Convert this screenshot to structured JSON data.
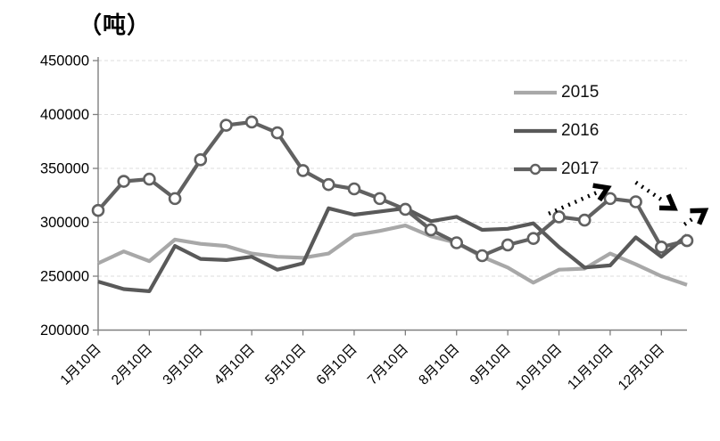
{
  "title": "（吨）",
  "chart_data": {
    "type": "line",
    "title": "（吨）",
    "unit": "吨",
    "x_tick_labels": [
      "1月10日",
      "2月10日",
      "3月10日",
      "4月10日",
      "5月10日",
      "6月10日",
      "7月10日",
      "8月10日",
      "9月10日",
      "10月10日",
      "11月10日",
      "12月10日"
    ],
    "points_per_tick": 2,
    "ylim": [
      200000,
      450000
    ],
    "ytick_step": 50000,
    "y_tick_labels": [
      "200000",
      "250000",
      "300000",
      "350000",
      "400000",
      "450000"
    ],
    "grid": "horizontal-dashed",
    "legend_position": "inside-top-right",
    "axis_color": "#7f7f7f",
    "grid_color": "#dcdcdc",
    "annotation_color": "#000000",
    "series": [
      {
        "name": "2015",
        "color": "#a8a8a8",
        "marker": "none",
        "values": [
          262000,
          273000,
          264000,
          284000,
          280000,
          278000,
          271000,
          268000,
          267000,
          271000,
          288000,
          292000,
          297000,
          287000,
          281000,
          268000,
          258000,
          244000,
          256000,
          257000,
          271000,
          261000,
          250000,
          242000
        ]
      },
      {
        "name": "2016",
        "color": "#595959",
        "marker": "none",
        "values": [
          245000,
          238000,
          236000,
          278000,
          266000,
          265000,
          268000,
          256000,
          262000,
          313000,
          307000,
          310000,
          313000,
          301000,
          305000,
          293000,
          294000,
          299000,
          277000,
          258000,
          260000,
          286000,
          268000,
          288000
        ]
      },
      {
        "name": "2017",
        "color": "#616161",
        "marker": "circle",
        "values": [
          311000,
          338000,
          340000,
          322000,
          358000,
          390000,
          393000,
          383000,
          348000,
          335000,
          331000,
          322000,
          312000,
          293000,
          281000,
          269000,
          279000,
          285000,
          305000,
          302000,
          322000,
          319000,
          277000,
          283000
        ]
      }
    ],
    "annotations": {
      "arrows": [
        {
          "direction": "up",
          "from": {
            "i": 17.6,
            "v": 308000
          },
          "to": {
            "i": 19.9,
            "v": 332000
          }
        },
        {
          "direction": "down",
          "from": {
            "i": 21.0,
            "v": 337000
          },
          "to": {
            "i": 22.5,
            "v": 313000
          }
        },
        {
          "direction": "up",
          "from": {
            "i": 22.9,
            "v": 298000
          },
          "to": {
            "i": 23.7,
            "v": 311000
          }
        }
      ]
    }
  }
}
